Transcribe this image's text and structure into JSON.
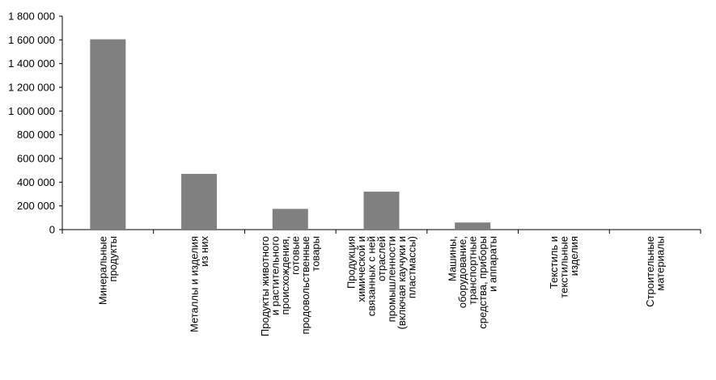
{
  "chart_data": {
    "type": "bar",
    "title": "",
    "xlabel": "",
    "ylabel": "",
    "ylim": [
      0,
      1800000
    ],
    "y_ticks": [
      0,
      200000,
      400000,
      600000,
      800000,
      1000000,
      1200000,
      1400000,
      1600000,
      1800000
    ],
    "y_tick_labels": [
      "0",
      "200 000",
      "400 000",
      "600 000",
      "800 000",
      "1 000 000",
      "1 200 000",
      "1 400 000",
      "1 600 000",
      "1 800 000"
    ],
    "grid": false,
    "legend": "none",
    "bar_color": "#808080",
    "categories": [
      "Минеральные продукты",
      "Металлы и изделия из них",
      "Продукты животного и растительного происхождения, готовые продовольственные товары",
      "Продукция химической и связанных с ней отраслей промышленности (включая каучуки и пластмассы)",
      "Машины, оборудование, транспортные средства, приборы и аппараты",
      "Текстиль и текстильные изделия",
      "Строительные материалы"
    ],
    "category_lines": [
      [
        "Минеральные",
        "продукты"
      ],
      [
        "Металлы и изделия",
        "из них"
      ],
      [
        "Продукты животного",
        "и растительного",
        "происхождения,",
        "готовые",
        "продовольственные",
        "товары"
      ],
      [
        "Продукция",
        "химической и",
        "связанных с ней",
        "отраслей",
        "промышленности",
        "(включая каучуки и",
        "пластмассы)"
      ],
      [
        "Машины,",
        "оборудование,",
        "транспортные",
        "средства, приборы",
        "и аппараты"
      ],
      [
        "Текстиль и",
        "текстильные",
        "изделия"
      ],
      [
        "Строительные",
        "материалы"
      ]
    ],
    "values": [
      1605000,
      470000,
      175000,
      320000,
      60000,
      0,
      0
    ]
  }
}
